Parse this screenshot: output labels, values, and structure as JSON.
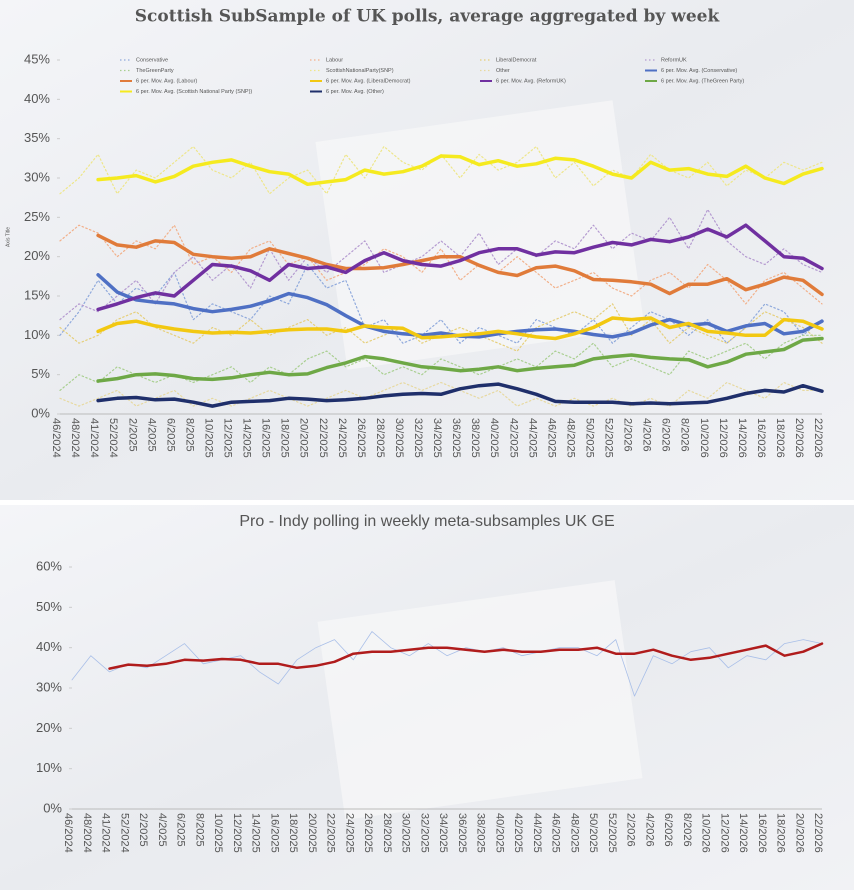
{
  "chart_data": [
    {
      "type": "line",
      "title": "Scottish SubSample of UK polls,  average aggregated by week",
      "y_label": "Axis Title",
      "legend": "top",
      "grid": false,
      "categories": [
        "46/2024",
        "48/2024",
        "41/2024",
        "52/2024",
        "2/2025",
        "4/2025",
        "6/2025",
        "8/2025",
        "10/2025",
        "12/2025",
        "14/2025",
        "16/2025",
        "18/2025",
        "20/2025",
        "22/2025",
        "24/2025",
        "26/2025",
        "28/2025",
        "30/2025",
        "32/2025",
        "34/2025",
        "36/2025",
        "38/2025",
        "40/2025",
        "42/2025",
        "44/2025",
        "46/2025",
        "48/2025",
        "50/2025",
        "52/2025",
        "2/2026",
        "4/2026",
        "6/2026",
        "8/2026",
        "10/2026",
        "12/2026",
        "14/2026",
        "16/2026",
        "18/2026",
        "20/2026",
        "22/2026"
      ],
      "ylim": [
        0,
        45
      ],
      "yticks": [
        {
          "value": 0,
          "label": "0%"
        },
        {
          "value": 5,
          "label": "5%"
        },
        {
          "value": 10,
          "label": "10%"
        },
        {
          "value": 15,
          "label": "15%"
        },
        {
          "value": 20,
          "label": "20%"
        },
        {
          "value": 25,
          "label": "25%"
        },
        {
          "value": 30,
          "label": "30%"
        },
        {
          "value": 35,
          "label": "35%"
        },
        {
          "value": 40,
          "label": "40%"
        },
        {
          "value": 45,
          "label": "45%"
        }
      ],
      "series": [
        {
          "name": "Conservative",
          "color": "#8fa9dc",
          "style": "dotted",
          "values": [
            10,
            13,
            17,
            14,
            16,
            15,
            18,
            12,
            14,
            13,
            12,
            15,
            14,
            19,
            16,
            17,
            11,
            12,
            9,
            10,
            12,
            9,
            11,
            10,
            9,
            12,
            11,
            10,
            12,
            9,
            11,
            13,
            12,
            10,
            12,
            9,
            11,
            14,
            13,
            10,
            12
          ]
        },
        {
          "name": "Labour",
          "color": "#f2b08a",
          "style": "dotted",
          "values": [
            22,
            24,
            23,
            20,
            22,
            21,
            24,
            19,
            20,
            18,
            21,
            22,
            19,
            20,
            17,
            18,
            19,
            21,
            20,
            18,
            21,
            17,
            19,
            18,
            20,
            18,
            16,
            17,
            18,
            16,
            15,
            17,
            18,
            16,
            19,
            17,
            14,
            17,
            18,
            16,
            14
          ]
        },
        {
          "name": "LiberalDemocrat",
          "color": "#e6cf7a",
          "style": "dotted",
          "values": [
            11,
            9,
            10,
            12,
            13,
            11,
            10,
            9,
            11,
            10,
            12,
            10,
            11,
            12,
            10,
            11,
            9,
            10,
            11,
            9,
            10,
            11,
            10,
            9,
            8,
            11,
            12,
            13,
            12,
            14,
            10,
            12,
            9,
            11,
            10,
            9,
            11,
            13,
            12,
            11,
            9
          ]
        },
        {
          "name": "ReformUK",
          "color": "#b49ad0",
          "style": "dotted",
          "values": [
            12,
            14,
            13,
            15,
            17,
            14,
            18,
            20,
            17,
            19,
            16,
            21,
            17,
            20,
            18,
            20,
            22,
            18,
            19,
            20,
            22,
            20,
            23,
            19,
            21,
            20,
            22,
            21,
            24,
            21,
            23,
            22,
            25,
            21,
            26,
            22,
            20,
            19,
            21,
            19,
            18
          ]
        },
        {
          "name": "TheGreenParty",
          "color": "#a9cf90",
          "style": "dotted",
          "values": [
            3,
            5,
            4,
            6,
            5,
            4,
            5,
            4,
            5,
            6,
            4,
            6,
            5,
            7,
            8,
            6,
            7,
            5,
            6,
            5,
            7,
            6,
            5,
            6,
            7,
            6,
            8,
            7,
            9,
            6,
            7,
            6,
            5,
            8,
            7,
            8,
            9,
            7,
            9,
            10,
            10
          ]
        },
        {
          "name": "ScottishNationalParty(SNP)",
          "color": "#eee68a",
          "style": "dotted",
          "values": [
            28,
            30,
            33,
            28,
            31,
            30,
            32,
            34,
            31,
            30,
            32,
            28,
            30,
            31,
            28,
            33,
            30,
            34,
            32,
            31,
            33,
            30,
            33,
            31,
            32,
            34,
            30,
            32,
            29,
            31,
            30,
            33,
            31,
            30,
            32,
            29,
            31,
            30,
            32,
            31,
            32
          ]
        },
        {
          "name": "Other",
          "color": "#e7d9a0",
          "style": "dotted",
          "values": [
            2,
            1,
            2,
            3,
            1,
            2,
            3,
            1,
            2,
            1,
            2,
            3,
            2,
            1,
            2,
            3,
            2,
            3,
            4,
            3,
            4,
            3,
            2,
            3,
            1,
            2,
            1,
            2,
            1,
            2,
            1,
            2,
            1,
            3,
            2,
            4,
            3,
            2,
            4,
            3,
            3
          ]
        },
        {
          "name": "6 per. Mov. Avg. (Conservative)",
          "color": "#4f70c4",
          "style": "thick",
          "values": [
            null,
            null,
            17.7,
            15.5,
            14.5,
            14.2,
            14,
            13.4,
            13,
            13.3,
            13.7,
            14.4,
            15.3,
            14.8,
            13.9,
            12.5,
            11.2,
            10.5,
            10.2,
            10,
            10.3,
            9.9,
            9.8,
            10.2,
            10.5,
            10.7,
            10.8,
            10.5,
            10.1,
            9.8,
            10.3,
            11.3,
            12,
            11.3,
            11.5,
            10.5,
            11.2,
            11.5,
            10.2,
            10.5,
            11.8
          ]
        },
        {
          "name": "6 per. Mov. Avg. (Labour)",
          "color": "#e07b3a",
          "style": "thick",
          "values": [
            null,
            null,
            22.7,
            21.5,
            21.2,
            22,
            21.8,
            20.3,
            20,
            19.8,
            20,
            21,
            20.4,
            19.8,
            19,
            18.5,
            18.5,
            18.6,
            19,
            19.5,
            20,
            20,
            18.9,
            18,
            17.6,
            18.6,
            18.8,
            18.2,
            17.1,
            17,
            16.8,
            16.5,
            15.3,
            16.5,
            16.5,
            17.2,
            15.8,
            16.5,
            17.4,
            17,
            15.2
          ]
        },
        {
          "name": "6 per. Mov. Avg. (LiberalDemocrat)",
          "color": "#f2c811",
          "style": "thick",
          "values": [
            null,
            null,
            10.5,
            11.5,
            11.8,
            11.2,
            10.8,
            10.5,
            10.3,
            10.4,
            10.3,
            10.5,
            10.7,
            10.8,
            10.8,
            10.5,
            11.2,
            11,
            10.9,
            9.7,
            9.8,
            10,
            10.2,
            10.5,
            10.2,
            9.8,
            9.6,
            10.2,
            11,
            12.2,
            12,
            12.2,
            11,
            11.5,
            10.5,
            10.3,
            10,
            10,
            12,
            11.8,
            10.8
          ]
        },
        {
          "name": "6 per. Mov. Avg. (ReformUK)",
          "color": "#7030a0",
          "style": "thick",
          "values": [
            null,
            null,
            13.3,
            14,
            14.8,
            15.4,
            15,
            17,
            19,
            18.8,
            18.2,
            17,
            19,
            18.5,
            18.7,
            18,
            19.5,
            20.5,
            19.5,
            19,
            18.8,
            19.5,
            20.5,
            21,
            21,
            20.2,
            20.6,
            20.5,
            21.2,
            21.8,
            21.5,
            22.2,
            21.9,
            22.5,
            23.5,
            22.5,
            24,
            22,
            20,
            19.8,
            18.5
          ]
        },
        {
          "name": "6 per. Mov. Avg. (TheGreen Party)",
          "color": "#6ea846",
          "style": "thick",
          "values": [
            null,
            null,
            4.2,
            4.5,
            5,
            5.1,
            4.9,
            4.5,
            4.4,
            4.6,
            5,
            5.3,
            5,
            5.1,
            5.9,
            6.5,
            7.3,
            7,
            6.5,
            6,
            5.8,
            5.5,
            5.7,
            6,
            5.5,
            5.8,
            6,
            6.2,
            7,
            7.3,
            7.5,
            7.2,
            7,
            6.9,
            6,
            6.6,
            7.6,
            7.9,
            8.2,
            9.4,
            9.6
          ]
        },
        {
          "name": "6 per. Mov. Avg. (Scottish National Party (SNP))",
          "color": "#f5ea1f",
          "style": "thick",
          "values": [
            null,
            null,
            29.8,
            30,
            30.3,
            29.5,
            30.2,
            31.5,
            32,
            32.3,
            31.5,
            30.8,
            30.5,
            29.2,
            29.5,
            29.8,
            31,
            30.5,
            30.8,
            31.5,
            32.8,
            32.7,
            31.7,
            32.2,
            31.5,
            31.8,
            32.5,
            32.3,
            31.5,
            30.5,
            30,
            32,
            31,
            31.2,
            30.5,
            30.2,
            31.5,
            30,
            29.3,
            30.5,
            31.2
          ]
        },
        {
          "name": "6 per. Mov. Avg. (Other)",
          "color": "#1f2f6b",
          "style": "thick",
          "values": [
            null,
            null,
            1.7,
            2,
            2.1,
            1.8,
            1.9,
            1.5,
            1,
            1.5,
            1.6,
            1.7,
            2,
            1.9,
            1.7,
            1.8,
            2,
            2.3,
            2.5,
            2.6,
            2.5,
            3.2,
            3.6,
            3.8,
            3.2,
            2.5,
            1.6,
            1.5,
            1.5,
            1.5,
            1.3,
            1.4,
            1.3,
            1.4,
            1.5,
            2,
            2.6,
            3,
            2.8,
            3.6,
            2.9
          ]
        }
      ]
    },
    {
      "type": "line",
      "title": "Pro - Indy polling in weekly meta-subsamples UK GE",
      "grid": false,
      "categories": [
        "46/2024",
        "48/2024",
        "41/2024",
        "52/2024",
        "2/2025",
        "4/2025",
        "6/2025",
        "8/2025",
        "10/2025",
        "12/2025",
        "14/2025",
        "16/2025",
        "18/2025",
        "20/2025",
        "22/2025",
        "24/2025",
        "26/2025",
        "28/2025",
        "30/2025",
        "32/2025",
        "34/2025",
        "36/2025",
        "38/2025",
        "40/2025",
        "42/2025",
        "44/2025",
        "46/2025",
        "48/2025",
        "50/2025",
        "52/2025",
        "2/2026",
        "4/2026",
        "6/2026",
        "8/2026",
        "10/2026",
        "12/2026",
        "14/2026",
        "16/2026",
        "18/2026",
        "20/2026",
        "22/2026"
      ],
      "ylim": [
        0,
        60
      ],
      "yticks": [
        {
          "value": 0,
          "label": "0%"
        },
        {
          "value": 10,
          "label": "10%"
        },
        {
          "value": 20,
          "label": "20%"
        },
        {
          "value": 30,
          "label": "30%"
        },
        {
          "value": 40,
          "label": "40%"
        },
        {
          "value": 50,
          "label": "50%"
        },
        {
          "value": 60,
          "label": "60%"
        }
      ],
      "series": [
        {
          "color": "#a9bfe8",
          "style": "thin",
          "values": [
            32,
            38,
            34,
            36,
            35,
            38,
            41,
            36,
            37,
            38,
            34,
            31,
            37,
            40,
            42,
            37,
            44,
            40,
            38,
            41,
            38,
            40,
            39,
            40,
            38,
            39,
            40,
            40,
            38,
            42,
            28,
            38,
            36,
            39,
            40,
            35,
            38,
            37,
            41,
            42,
            41
          ]
        },
        {
          "color": "#b01c1c",
          "style": "medium",
          "values": [
            null,
            null,
            34.8,
            35.8,
            35.5,
            36,
            37,
            36.8,
            37.2,
            37,
            36,
            36,
            35,
            35.5,
            36.5,
            38.5,
            39,
            39,
            39.5,
            40,
            40,
            39.5,
            39,
            39.5,
            39,
            39,
            39.5,
            39.5,
            40,
            38.5,
            38.5,
            39.5,
            38,
            37,
            37.5,
            38.5,
            39.5,
            40.5,
            38,
            39,
            41
          ]
        }
      ]
    }
  ]
}
